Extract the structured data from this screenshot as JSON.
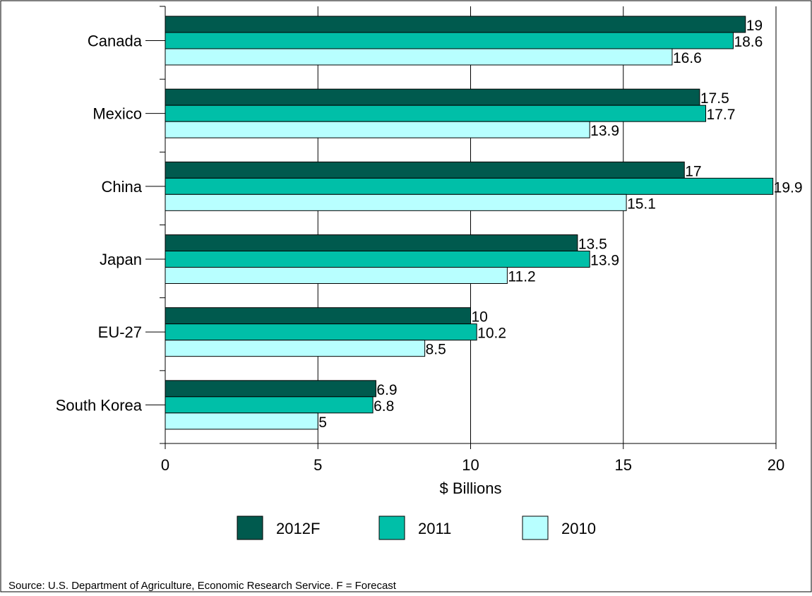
{
  "chart_data": {
    "type": "bar",
    "orientation": "horizontal",
    "categories": [
      "Canada",
      "Mexico",
      "China",
      "Japan",
      "EU-27",
      "South Korea"
    ],
    "series": [
      {
        "name": "2012F",
        "values": [
          19,
          17.5,
          17,
          13.5,
          10,
          6.9
        ],
        "color": "#005a4e"
      },
      {
        "name": "2011",
        "values": [
          18.6,
          17.7,
          19.9,
          13.9,
          10.2,
          6.8
        ],
        "color": "#00bfa8"
      },
      {
        "name": "2010",
        "values": [
          16.6,
          13.9,
          15.1,
          11.2,
          8.5,
          5
        ],
        "color": "#b8ffff"
      }
    ],
    "xlabel": "$ Billions",
    "xlim": [
      0,
      20
    ],
    "x_ticks": [
      "0",
      "5",
      "10",
      "15",
      "20"
    ],
    "grid": "vertical",
    "legend_position": "bottom"
  },
  "source_note": "Source: U.S. Department of Agriculture,  Economic Research Service.     F = Forecast"
}
